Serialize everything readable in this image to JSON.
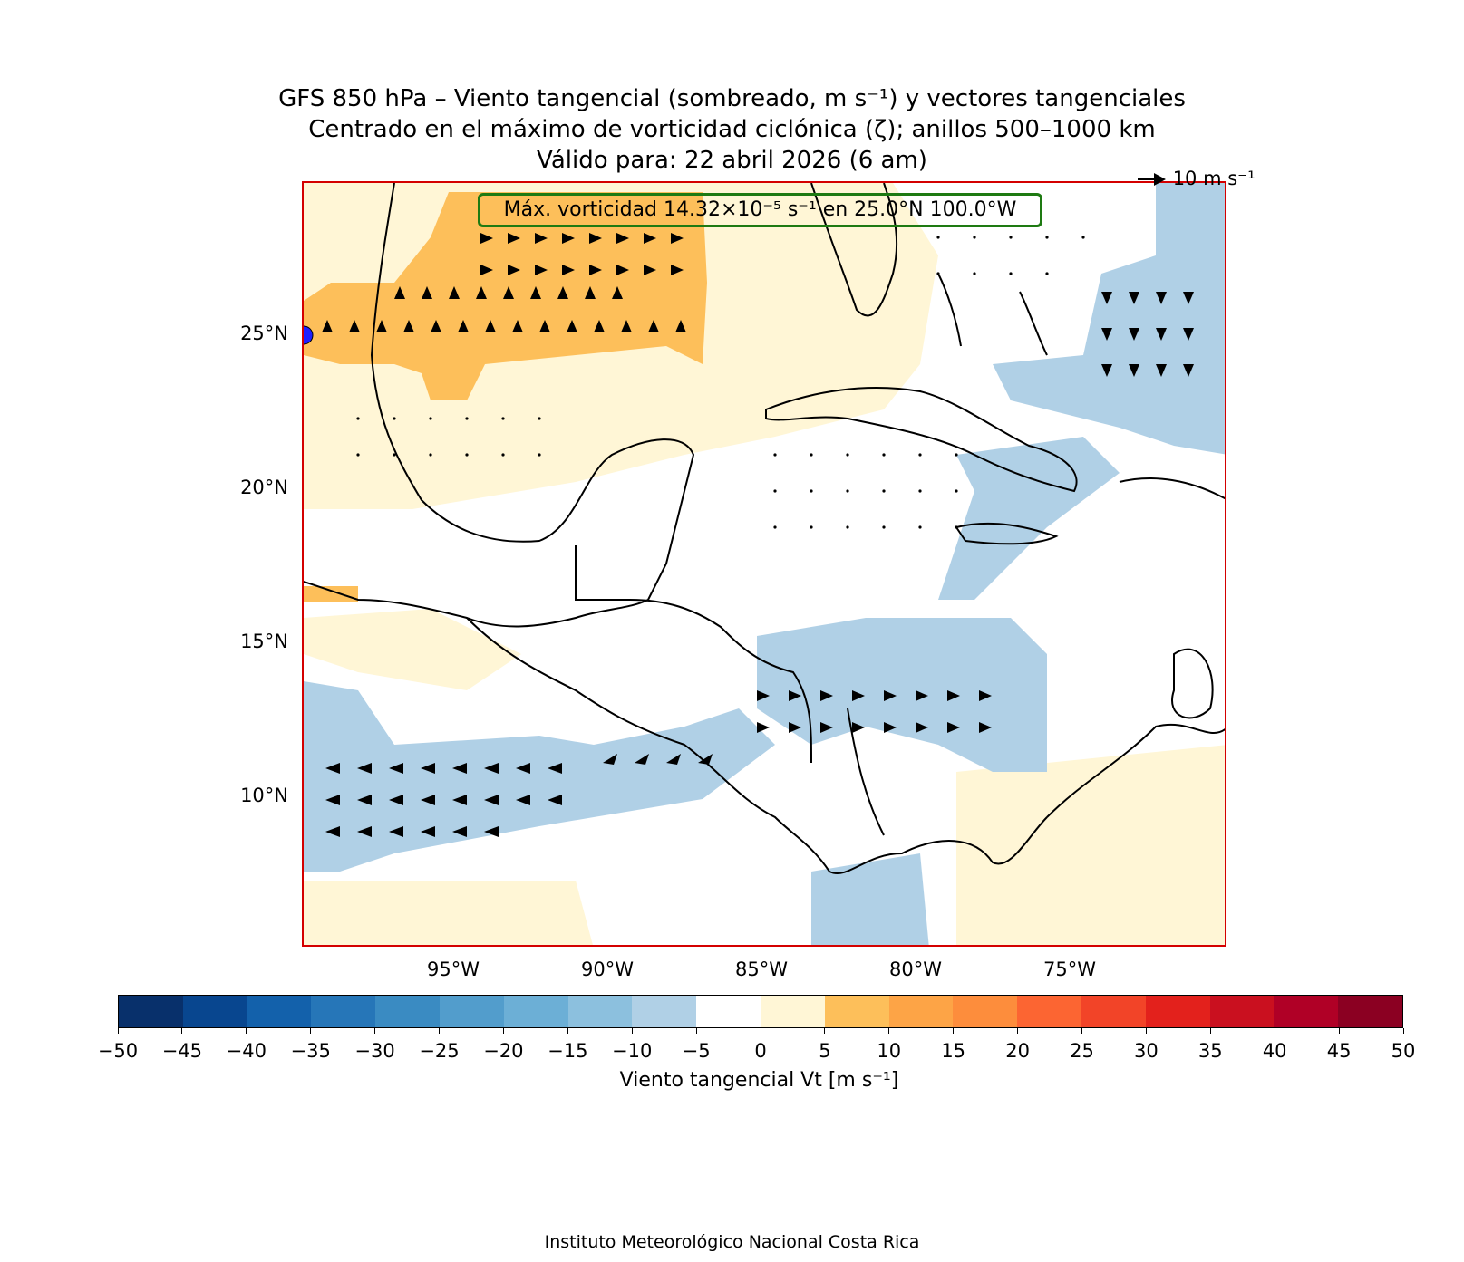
{
  "title": {
    "line1": "GFS 850 hPa – Viento tangencial (sombreado, m s⁻¹) y vectores tangenciales",
    "line2": "Centrado en el máximo de vorticidad ciclónica (ζ); anillos 500–1000 km",
    "line3": "Válido para: 22 abril 2026 (6 am)"
  },
  "vmax_label": "Máx. vorticidad 14.32×10⁻⁵ s⁻¹ en 25.0°N 100.0°W",
  "ref_vector_label": "10 m s⁻¹",
  "map": {
    "lon_range": [
      -100,
      -70
    ],
    "lat_range": [
      5,
      30
    ],
    "center_marker": {
      "lat": 25.0,
      "lon": -100.0
    },
    "lat_ticks": [
      "25°N",
      "20°N",
      "15°N",
      "10°N"
    ],
    "lat_values": [
      25,
      20,
      15,
      10
    ],
    "lon_ticks": [
      "95°W",
      "90°W",
      "85°W",
      "80°W",
      "75°W"
    ],
    "lon_values": [
      -95,
      -90,
      -85,
      -80,
      -75
    ],
    "colors": {
      "frame": "#d40000",
      "marker": "#1f1fff",
      "box_border": "#1e7a12"
    },
    "shaded_regions": [
      {
        "name": "gulf-positive-strong",
        "class": "5-10",
        "color": "#fdbf5a"
      },
      {
        "name": "gulf-positive-weak",
        "class": "0-5",
        "color": "#fff6d6"
      },
      {
        "name": "caribbean-negative",
        "class": "-10 to -5",
        "color": "#b0d0e6"
      },
      {
        "name": "pacific-negative",
        "class": "-10 to -5",
        "color": "#b0d0e6"
      },
      {
        "name": "atlantic-negative",
        "class": "-10 to -5",
        "color": "#b0d0e6"
      }
    ]
  },
  "colorbar": {
    "label": "Viento tangencial Vt [m s⁻¹]",
    "ticks": [
      "−50",
      "−45",
      "−40",
      "−35",
      "−30",
      "−25",
      "−20",
      "−15",
      "−10",
      "−5",
      "0",
      "5",
      "10",
      "15",
      "20",
      "25",
      "30",
      "35",
      "40",
      "45",
      "50"
    ],
    "colors": [
      "#08306b",
      "#08468f",
      "#1361ab",
      "#2676b8",
      "#3a8bc2",
      "#529dcc",
      "#6cafd6",
      "#8cc0de",
      "#b0d0e6",
      "#ffffff",
      "#fff6d6",
      "#fdbf5a",
      "#fda446",
      "#fd8d3c",
      "#fc6532",
      "#f24428",
      "#e3211c",
      "#ca101f",
      "#b00026",
      "#8b0022"
    ]
  },
  "footer": "Instituto Meteorológico Nacional Costa Rica"
}
